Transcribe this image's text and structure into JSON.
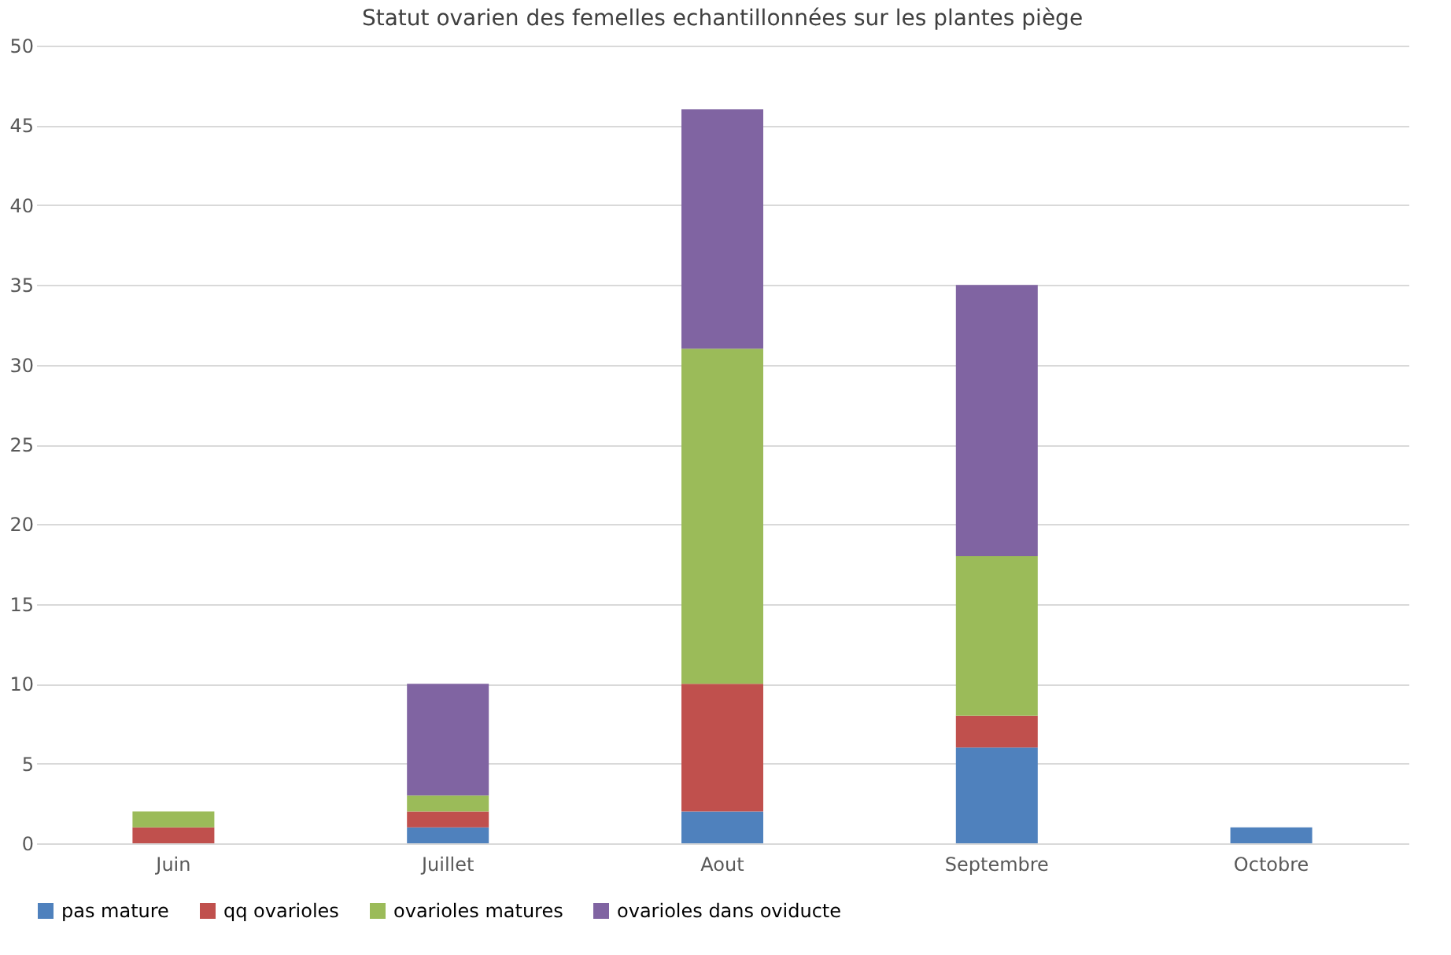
{
  "chart_data": {
    "type": "bar",
    "title": "Statut ovarien des femelles echantillonnées sur les plantes piège",
    "categories": [
      "Juin",
      "Juillet",
      "Aout",
      "Septembre",
      "Octobre"
    ],
    "stacked": true,
    "series": [
      {
        "name": "pas mature",
        "color": "#4f81bd",
        "values": [
          0,
          1,
          2,
          6,
          1
        ]
      },
      {
        "name": "qq ovarioles",
        "color": "#c0504d",
        "values": [
          1,
          1,
          8,
          2,
          0
        ]
      },
      {
        "name": "ovarioles matures",
        "color": "#9bbb59",
        "values": [
          1,
          1,
          21,
          10,
          0
        ]
      },
      {
        "name": "ovarioles dans oviducte",
        "color": "#8064a2",
        "values": [
          0,
          7,
          15,
          17,
          0
        ]
      }
    ],
    "ylim": [
      0,
      50
    ],
    "yticks": [
      0,
      5,
      10,
      15,
      20,
      25,
      30,
      35,
      40,
      45,
      50
    ],
    "grid": "y",
    "legend": "bottom"
  }
}
